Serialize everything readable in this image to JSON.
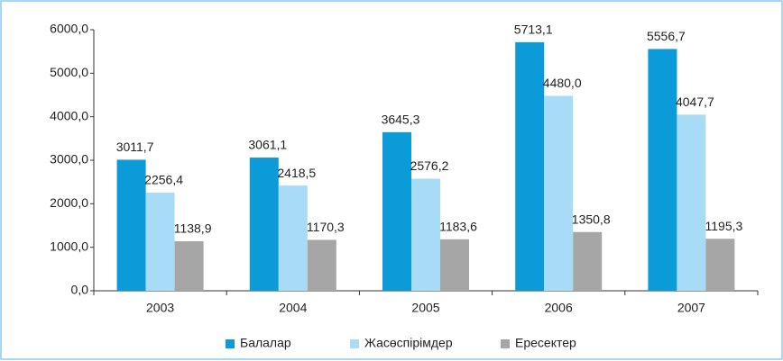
{
  "chart_data": {
    "type": "bar",
    "categories": [
      "2003",
      "2004",
      "2005",
      "2006",
      "2007"
    ],
    "series": [
      {
        "name": "Балалар",
        "color": "#0b9bd9",
        "values": [
          3011.7,
          3061.1,
          3645.3,
          5713.1,
          5556.7
        ],
        "value_labels": [
          "3011,7",
          "3061,1",
          "3645,3",
          "5713,1",
          "5556,7"
        ]
      },
      {
        "name": "Жасөспірімдер",
        "color": "#a8dcf6",
        "values": [
          2256.4,
          2418.5,
          2576.2,
          4480.0,
          4047.7
        ],
        "value_labels": [
          "2256,4",
          "2418,5",
          "2576,2",
          "4480,0",
          "4047,7"
        ]
      },
      {
        "name": "Ересектер",
        "color": "#a6a6a6",
        "values": [
          1138.9,
          1170.3,
          1183.6,
          1350.8,
          1195.3
        ],
        "value_labels": [
          "1138,9",
          "1170,3",
          "1183,6",
          "1350,8",
          "1195,3"
        ]
      }
    ],
    "ylim": [
      0,
      6000
    ],
    "yticks": [
      {
        "value": 0,
        "label": "0,0"
      },
      {
        "value": 1000,
        "label": "1000,0"
      },
      {
        "value": 2000,
        "label": "2000,0"
      },
      {
        "value": 3000,
        "label": "3000,0"
      },
      {
        "value": 4000,
        "label": "4000,0"
      },
      {
        "value": 5000,
        "label": "5000,0"
      },
      {
        "value": 6000,
        "label": "6000,0"
      }
    ],
    "legend": "bottom"
  }
}
